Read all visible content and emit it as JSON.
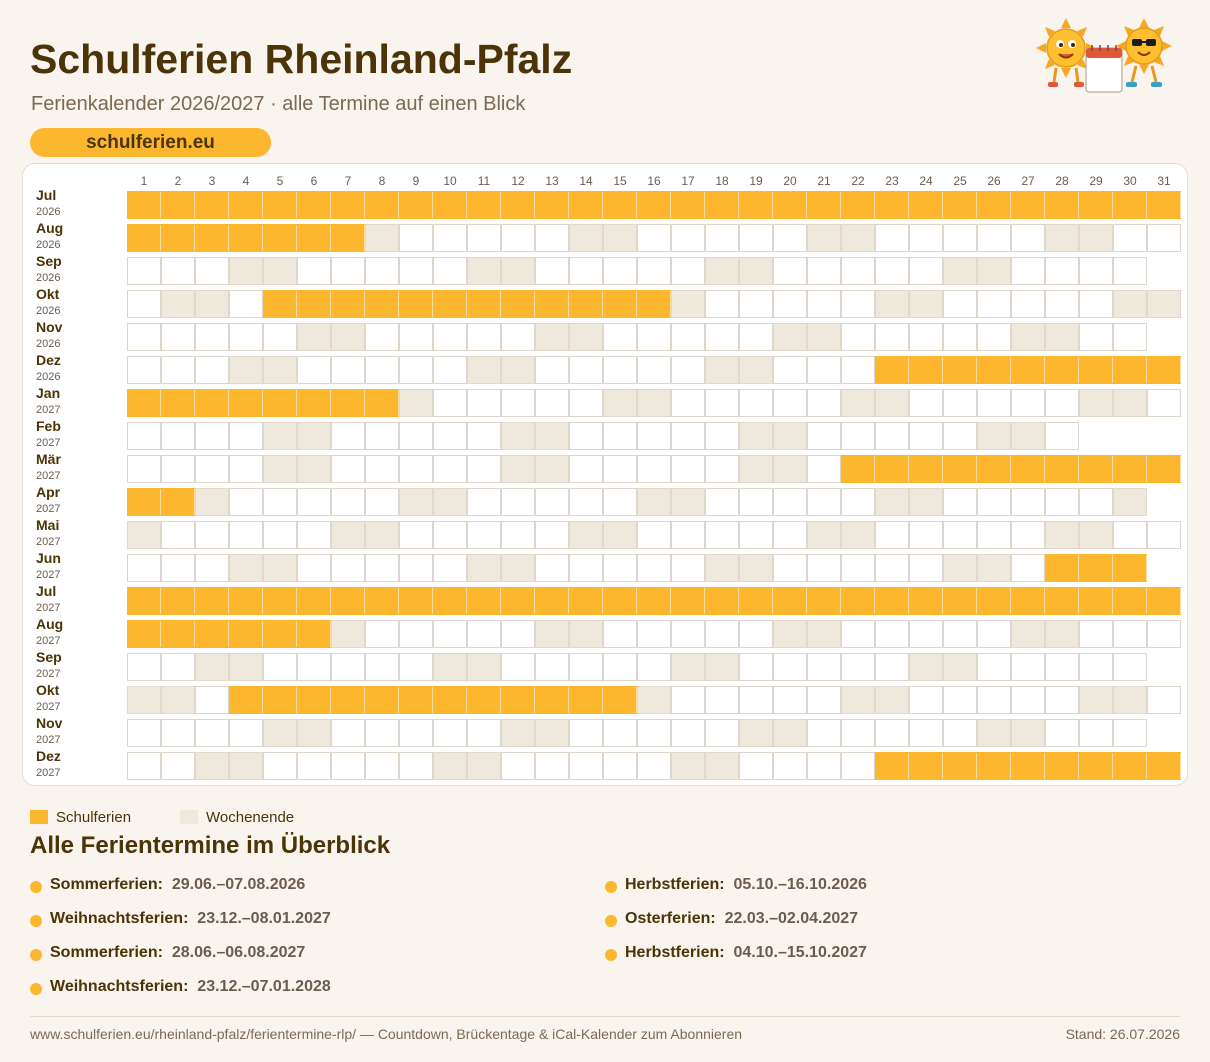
{
  "header": {
    "title": "Schulferien Rheinland-Pfalz",
    "subtitle": "Ferienkalender 2026/2027 · alle Termine auf einen Blick",
    "brand": "schulferien.eu",
    "mascot_icon": "sun-mascots-with-calendar-icon"
  },
  "colors": {
    "holiday": "#fdb72f",
    "weekend": "#efe8dc",
    "workday": "#ffffff",
    "text": "#4a3408"
  },
  "calendar": {
    "days": [
      "1",
      "2",
      "3",
      "4",
      "5",
      "6",
      "7",
      "8",
      "9",
      "10",
      "11",
      "12",
      "13",
      "14",
      "15",
      "16",
      "17",
      "18",
      "19",
      "20",
      "21",
      "22",
      "23",
      "24",
      "25",
      "26",
      "27",
      "28",
      "29",
      "30",
      "31"
    ],
    "months": [
      {
        "name": "Jul",
        "year": "2026",
        "days": 31,
        "first_weekday": 3,
        "holidays": [
          [
            1,
            31
          ]
        ]
      },
      {
        "name": "Aug",
        "year": "2026",
        "days": 31,
        "first_weekday": 6,
        "holidays": [
          [
            1,
            7
          ]
        ]
      },
      {
        "name": "Sep",
        "year": "2026",
        "days": 30,
        "first_weekday": 2,
        "holidays": []
      },
      {
        "name": "Okt",
        "year": "2026",
        "days": 31,
        "first_weekday": 4,
        "holidays": [
          [
            5,
            16
          ]
        ]
      },
      {
        "name": "Nov",
        "year": "2026",
        "days": 30,
        "first_weekday": 0,
        "holidays": []
      },
      {
        "name": "Dez",
        "year": "2026",
        "days": 31,
        "first_weekday": 2,
        "holidays": [
          [
            23,
            31
          ]
        ]
      },
      {
        "name": "Jan",
        "year": "2027",
        "days": 31,
        "first_weekday": 5,
        "holidays": [
          [
            1,
            8
          ]
        ]
      },
      {
        "name": "Feb",
        "year": "2027",
        "days": 28,
        "first_weekday": 1,
        "holidays": []
      },
      {
        "name": "Mär",
        "year": "2027",
        "days": 31,
        "first_weekday": 1,
        "holidays": [
          [
            22,
            31
          ]
        ]
      },
      {
        "name": "Apr",
        "year": "2027",
        "days": 30,
        "first_weekday": 4,
        "holidays": [
          [
            1,
            2
          ]
        ]
      },
      {
        "name": "Mai",
        "year": "2027",
        "days": 31,
        "first_weekday": 6,
        "holidays": []
      },
      {
        "name": "Jun",
        "year": "2027",
        "days": 30,
        "first_weekday": 2,
        "holidays": [
          [
            28,
            30
          ]
        ]
      },
      {
        "name": "Jul",
        "year": "2027",
        "days": 31,
        "first_weekday": 4,
        "holidays": [
          [
            1,
            31
          ]
        ]
      },
      {
        "name": "Aug",
        "year": "2027",
        "days": 31,
        "first_weekday": 0,
        "holidays": [
          [
            1,
            6
          ]
        ]
      },
      {
        "name": "Sep",
        "year": "2027",
        "days": 30,
        "first_weekday": 3,
        "holidays": []
      },
      {
        "name": "Okt",
        "year": "2027",
        "days": 31,
        "first_weekday": 5,
        "holidays": [
          [
            4,
            15
          ]
        ]
      },
      {
        "name": "Nov",
        "year": "2027",
        "days": 30,
        "first_weekday": 1,
        "holidays": []
      },
      {
        "name": "Dez",
        "year": "2027",
        "days": 31,
        "first_weekday": 3,
        "holidays": [
          [
            23,
            31
          ]
        ]
      }
    ]
  },
  "legend": {
    "holiday_label": "Schulferien",
    "weekend_label": "Wochenende"
  },
  "overview": {
    "title": "Alle Ferientermine im Überblick",
    "left": [
      {
        "name": "Sommerferien:",
        "dates": "29.06.–07.08.2026"
      },
      {
        "name": "Weihnachtsferien:",
        "dates": "23.12.–08.01.2027"
      },
      {
        "name": "Sommerferien:",
        "dates": "28.06.–06.08.2027"
      },
      {
        "name": "Weihnachtsferien:",
        "dates": "23.12.–07.01.2028"
      }
    ],
    "right": [
      {
        "name": "Herbstferien:",
        "dates": "05.10.–16.10.2026"
      },
      {
        "name": "Osterferien:",
        "dates": "22.03.–02.04.2027"
      },
      {
        "name": "Herbstferien:",
        "dates": "04.10.–15.10.2027"
      }
    ]
  },
  "footer": {
    "link": "www.schulferien.eu/rheinland-pfalz/ferientermine-rlp/ — Countdown, Brückentage & iCal-Kalender zum Abonnieren",
    "stand": "Stand: 26.07.2026"
  }
}
